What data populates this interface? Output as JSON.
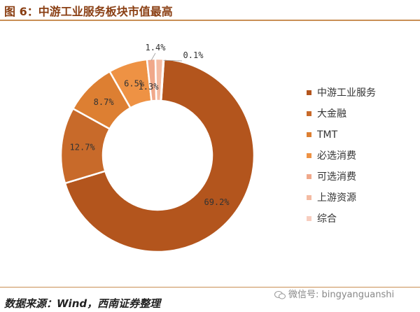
{
  "figure": {
    "title": "图 6：中游工业服务板块市值最高",
    "source": "数据来源：Wind，西南证券整理",
    "watermark": "微信号: bingyanguanshi"
  },
  "chart_data": {
    "type": "pie",
    "variant": "donut",
    "legend_position": "right",
    "categories": [
      "中游工业服务",
      "大金融",
      "TMT",
      "必选消费",
      "可选消费",
      "上游资源",
      "综合"
    ],
    "values": [
      69.2,
      12.7,
      8.7,
      6.5,
      1.4,
      1.3,
      0.1
    ],
    "labels": [
      "69.2%",
      "12.7%",
      "8.7%",
      "6.5%",
      "1.4%",
      "1.3%",
      "0.1%"
    ],
    "colors": [
      "#b3551d",
      "#c86a2a",
      "#dd7f32",
      "#ee9244",
      "#f0a88a",
      "#f4bba2",
      "#f7cdbf"
    ]
  }
}
